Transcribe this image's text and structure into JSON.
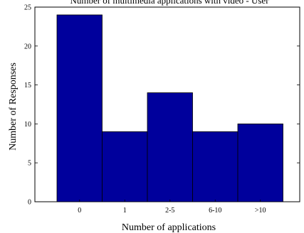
{
  "chart_data": {
    "type": "bar",
    "title": "Number of multimedia applications with video - User",
    "xlabel": "Number of applications",
    "ylabel": "Number of Responses",
    "categories": [
      "0",
      "1",
      "2-5",
      "6-10",
      ">10"
    ],
    "values": [
      24,
      9,
      14,
      9,
      10
    ],
    "ylim": [
      0,
      25
    ],
    "yticks": [
      0,
      5,
      10,
      15,
      20,
      25
    ],
    "grid": false,
    "bar_color": "#00009C"
  }
}
